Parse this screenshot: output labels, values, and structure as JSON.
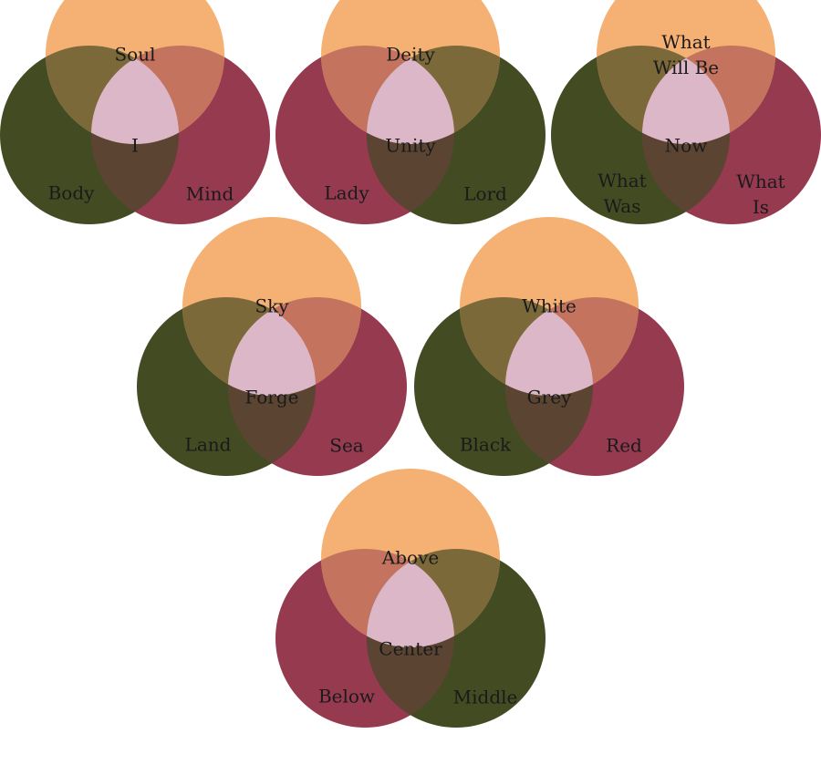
{
  "colors": {
    "top": "#f5b173",
    "green": "#434b22",
    "red": "#963a50",
    "top_green": "#7b693a",
    "top_red": "#c4745e",
    "green_red": "#5b4432",
    "center": "#dbb7c7"
  },
  "diagrams": [
    {
      "top": "Soul",
      "left": "Body",
      "right": "Mind",
      "center": "I",
      "left_color": "green",
      "right_color": "red"
    },
    {
      "top": "Deity",
      "left": "Lady",
      "right": "Lord",
      "center": "Unity",
      "left_color": "red",
      "right_color": "green"
    },
    {
      "top": "What Will Be",
      "left": "What Was",
      "right": "What Is",
      "center": "Now",
      "left_color": "green",
      "right_color": "red"
    },
    {
      "top": "Sky",
      "left": "Land",
      "right": "Sea",
      "center": "Forge",
      "left_color": "green",
      "right_color": "red"
    },
    {
      "top": "White",
      "left": "Black",
      "right": "Red",
      "center": "Grey",
      "left_color": "green",
      "right_color": "red"
    },
    {
      "top": "Above",
      "left": "Below",
      "right": "Middle",
      "center": "Center",
      "left_color": "red",
      "right_color": "green"
    }
  ]
}
